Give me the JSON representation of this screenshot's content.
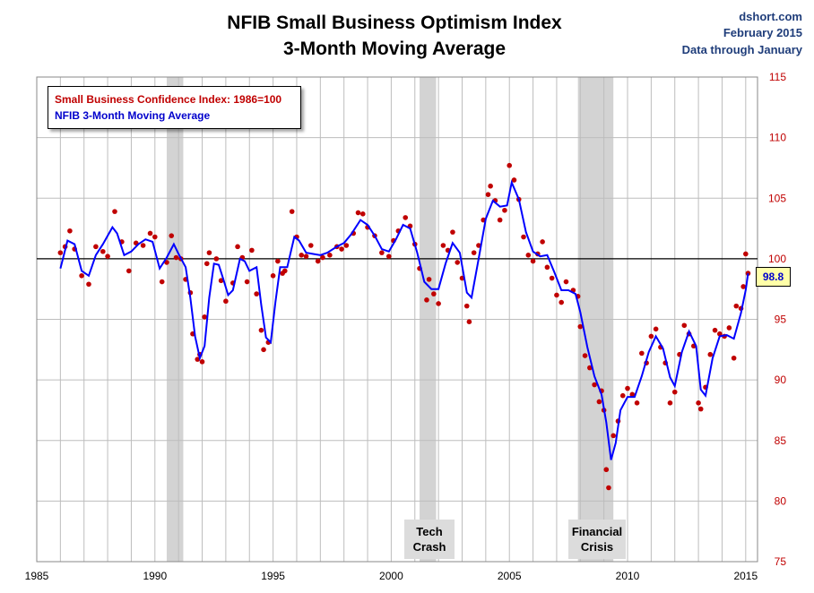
{
  "header": {
    "title_line1": "NFIB Small Business Optimism Index",
    "title_line2": "3-Month Moving Average",
    "credit_site": "dshort.com",
    "credit_date": "February 2015",
    "credit_note": "Data through January"
  },
  "legend": {
    "dots_label": "Small Business Confidence Index: 1986=100",
    "line_label": "NFIB 3-Month Moving Average"
  },
  "callout": {
    "value": "98.8"
  },
  "recession_labels": {
    "tech_line1": "Tech",
    "tech_line2": "Crash",
    "fin_line1": "Financial",
    "fin_line2": "Crisis"
  },
  "colors": {
    "dots": "#c00000",
    "line": "#0000ff",
    "shade": "#d3d3d3",
    "ytick": "#c00000"
  },
  "chart_data": {
    "type": "scatter",
    "title": "NFIB Small Business Optimism Index 3-Month Moving Average",
    "xlim": [
      1985,
      2015.5
    ],
    "ylim": [
      75,
      115
    ],
    "y_axis_side": "right",
    "reference_line": 100,
    "x_ticks": [
      1985,
      1990,
      1995,
      2000,
      2005,
      2010,
      2015
    ],
    "x_tick_labels": [
      "1985",
      "1990",
      "1995",
      "2000",
      "2005",
      "2010",
      "2015"
    ],
    "y_ticks": [
      75,
      80,
      85,
      90,
      95,
      100,
      105,
      110,
      115
    ],
    "y_tick_labels": [
      "75",
      "80",
      "85",
      "90",
      "95",
      "100",
      "105",
      "110",
      "115"
    ],
    "recessions": [
      [
        1990.5,
        1991.2
      ],
      [
        2001.2,
        2001.9
      ],
      [
        2007.9,
        2009.4
      ]
    ],
    "monthly_index_dots": [
      [
        1986.0,
        100.5
      ],
      [
        1986.2,
        101.0
      ],
      [
        1986.4,
        102.3
      ],
      [
        1986.6,
        100.8
      ],
      [
        1986.9,
        98.6
      ],
      [
        1987.2,
        97.9
      ],
      [
        1987.5,
        101.0
      ],
      [
        1987.8,
        100.6
      ],
      [
        1988.0,
        100.2
      ],
      [
        1988.3,
        103.9
      ],
      [
        1988.6,
        101.4
      ],
      [
        1988.9,
        99.0
      ],
      [
        1989.2,
        101.3
      ],
      [
        1989.5,
        101.1
      ],
      [
        1989.8,
        102.1
      ],
      [
        1990.0,
        101.8
      ],
      [
        1990.3,
        98.1
      ],
      [
        1990.5,
        99.7
      ],
      [
        1990.7,
        101.9
      ],
      [
        1990.9,
        100.1
      ],
      [
        1991.1,
        100.0
      ],
      [
        1991.3,
        98.3
      ],
      [
        1991.5,
        97.2
      ],
      [
        1991.6,
        93.8
      ],
      [
        1991.8,
        91.7
      ],
      [
        1991.9,
        92.1
      ],
      [
        1992.0,
        91.5
      ],
      [
        1992.1,
        95.2
      ],
      [
        1992.2,
        99.6
      ],
      [
        1992.3,
        100.5
      ],
      [
        1992.6,
        100.0
      ],
      [
        1992.8,
        98.2
      ],
      [
        1993.0,
        96.5
      ],
      [
        1993.3,
        98.0
      ],
      [
        1993.5,
        101.0
      ],
      [
        1993.7,
        100.1
      ],
      [
        1993.9,
        98.1
      ],
      [
        1994.1,
        100.7
      ],
      [
        1994.3,
        97.1
      ],
      [
        1994.5,
        94.1
      ],
      [
        1994.6,
        92.5
      ],
      [
        1994.8,
        93.1
      ],
      [
        1995.0,
        98.6
      ],
      [
        1995.2,
        99.8
      ],
      [
        1995.4,
        98.8
      ],
      [
        1995.5,
        99.0
      ],
      [
        1995.8,
        103.9
      ],
      [
        1996.0,
        101.8
      ],
      [
        1996.2,
        100.3
      ],
      [
        1996.4,
        100.2
      ],
      [
        1996.6,
        101.1
      ],
      [
        1996.9,
        99.8
      ],
      [
        1997.1,
        100.1
      ],
      [
        1997.4,
        100.3
      ],
      [
        1997.7,
        101.0
      ],
      [
        1997.9,
        100.8
      ],
      [
        1998.1,
        101.1
      ],
      [
        1998.4,
        102.1
      ],
      [
        1998.6,
        103.8
      ],
      [
        1998.8,
        103.7
      ],
      [
        1999.0,
        102.6
      ],
      [
        1999.3,
        101.9
      ],
      [
        1999.6,
        100.5
      ],
      [
        1999.9,
        100.2
      ],
      [
        2000.1,
        101.5
      ],
      [
        2000.3,
        102.3
      ],
      [
        2000.6,
        103.4
      ],
      [
        2000.8,
        102.7
      ],
      [
        2001.0,
        101.2
      ],
      [
        2001.2,
        99.2
      ],
      [
        2001.5,
        96.6
      ],
      [
        2001.6,
        98.3
      ],
      [
        2001.8,
        97.1
      ],
      [
        2002.0,
        96.3
      ],
      [
        2002.2,
        101.1
      ],
      [
        2002.4,
        100.7
      ],
      [
        2002.6,
        102.2
      ],
      [
        2002.8,
        99.7
      ],
      [
        2003.0,
        98.4
      ],
      [
        2003.2,
        96.1
      ],
      [
        2003.3,
        94.8
      ],
      [
        2003.5,
        100.5
      ],
      [
        2003.7,
        101.1
      ],
      [
        2003.9,
        103.2
      ],
      [
        2004.1,
        105.3
      ],
      [
        2004.2,
        106.0
      ],
      [
        2004.4,
        104.8
      ],
      [
        2004.6,
        103.2
      ],
      [
        2004.8,
        104.0
      ],
      [
        2005.0,
        107.7
      ],
      [
        2005.2,
        106.5
      ],
      [
        2005.4,
        104.9
      ],
      [
        2005.6,
        101.8
      ],
      [
        2005.8,
        100.3
      ],
      [
        2006.0,
        99.8
      ],
      [
        2006.2,
        100.4
      ],
      [
        2006.4,
        101.4
      ],
      [
        2006.6,
        99.3
      ],
      [
        2006.8,
        98.4
      ],
      [
        2007.0,
        97.0
      ],
      [
        2007.2,
        96.4
      ],
      [
        2007.4,
        98.1
      ],
      [
        2007.7,
        97.4
      ],
      [
        2007.9,
        96.9
      ],
      [
        2008.0,
        94.4
      ],
      [
        2008.2,
        92.0
      ],
      [
        2008.4,
        91.0
      ],
      [
        2008.6,
        89.6
      ],
      [
        2008.8,
        88.2
      ],
      [
        2008.9,
        89.1
      ],
      [
        2009.0,
        87.5
      ],
      [
        2009.1,
        82.6
      ],
      [
        2009.2,
        81.1
      ],
      [
        2009.4,
        85.4
      ],
      [
        2009.6,
        86.6
      ],
      [
        2009.8,
        88.7
      ],
      [
        2010.0,
        89.3
      ],
      [
        2010.2,
        88.8
      ],
      [
        2010.4,
        88.1
      ],
      [
        2010.6,
        92.2
      ],
      [
        2010.8,
        91.4
      ],
      [
        2011.0,
        93.6
      ],
      [
        2011.2,
        94.2
      ],
      [
        2011.4,
        92.7
      ],
      [
        2011.6,
        91.4
      ],
      [
        2011.8,
        88.1
      ],
      [
        2012.0,
        89.0
      ],
      [
        2012.2,
        92.1
      ],
      [
        2012.4,
        94.5
      ],
      [
        2012.6,
        93.8
      ],
      [
        2012.8,
        92.8
      ],
      [
        2013.0,
        88.1
      ],
      [
        2013.1,
        87.6
      ],
      [
        2013.3,
        89.4
      ],
      [
        2013.5,
        92.1
      ],
      [
        2013.7,
        94.1
      ],
      [
        2013.9,
        93.8
      ],
      [
        2014.1,
        93.6
      ],
      [
        2014.3,
        94.3
      ],
      [
        2014.5,
        91.8
      ],
      [
        2014.6,
        96.1
      ],
      [
        2014.8,
        95.9
      ],
      [
        2014.9,
        97.7
      ],
      [
        2015.0,
        100.4
      ],
      [
        2015.1,
        98.8
      ]
    ],
    "moving_average": [
      [
        1986.0,
        99.2
      ],
      [
        1986.3,
        101.5
      ],
      [
        1986.6,
        101.2
      ],
      [
        1986.9,
        99.0
      ],
      [
        1987.2,
        98.6
      ],
      [
        1987.5,
        100.3
      ],
      [
        1987.8,
        101.2
      ],
      [
        1988.2,
        102.6
      ],
      [
        1988.4,
        102.1
      ],
      [
        1988.7,
        100.3
      ],
      [
        1989.0,
        100.6
      ],
      [
        1989.3,
        101.2
      ],
      [
        1989.6,
        101.6
      ],
      [
        1989.9,
        101.4
      ],
      [
        1990.2,
        99.2
      ],
      [
        1990.5,
        100.1
      ],
      [
        1990.8,
        101.2
      ],
      [
        1991.0,
        100.4
      ],
      [
        1991.3,
        99.3
      ],
      [
        1991.5,
        96.8
      ],
      [
        1991.7,
        93.6
      ],
      [
        1991.9,
        91.8
      ],
      [
        1992.1,
        92.8
      ],
      [
        1992.3,
        96.8
      ],
      [
        1992.5,
        99.6
      ],
      [
        1992.7,
        99.5
      ],
      [
        1992.9,
        98.3
      ],
      [
        1993.1,
        97.0
      ],
      [
        1993.3,
        97.4
      ],
      [
        1993.6,
        100.0
      ],
      [
        1993.8,
        99.8
      ],
      [
        1994.0,
        99.0
      ],
      [
        1994.3,
        99.3
      ],
      [
        1994.5,
        96.2
      ],
      [
        1994.7,
        93.5
      ],
      [
        1994.9,
        93.1
      ],
      [
        1995.1,
        96.4
      ],
      [
        1995.3,
        99.3
      ],
      [
        1995.6,
        99.3
      ],
      [
        1995.9,
        101.8
      ],
      [
        1996.1,
        101.5
      ],
      [
        1996.4,
        100.5
      ],
      [
        1996.7,
        100.4
      ],
      [
        1997.0,
        100.3
      ],
      [
        1997.3,
        100.5
      ],
      [
        1997.7,
        101.0
      ],
      [
        1998.0,
        101.3
      ],
      [
        1998.3,
        102.0
      ],
      [
        1998.7,
        103.2
      ],
      [
        1999.0,
        102.8
      ],
      [
        1999.3,
        101.9
      ],
      [
        1999.6,
        100.8
      ],
      [
        1999.9,
        100.6
      ],
      [
        2000.2,
        101.6
      ],
      [
        2000.5,
        102.8
      ],
      [
        2000.8,
        102.5
      ],
      [
        2001.1,
        100.5
      ],
      [
        2001.4,
        98.1
      ],
      [
        2001.7,
        97.5
      ],
      [
        2002.0,
        97.5
      ],
      [
        2002.3,
        99.6
      ],
      [
        2002.6,
        101.3
      ],
      [
        2002.9,
        100.5
      ],
      [
        2003.2,
        97.2
      ],
      [
        2003.4,
        96.8
      ],
      [
        2003.7,
        100.0
      ],
      [
        2004.0,
        103.3
      ],
      [
        2004.3,
        104.8
      ],
      [
        2004.6,
        104.3
      ],
      [
        2004.9,
        104.4
      ],
      [
        2005.1,
        106.3
      ],
      [
        2005.4,
        104.9
      ],
      [
        2005.7,
        102.2
      ],
      [
        2006.0,
        100.6
      ],
      [
        2006.3,
        100.2
      ],
      [
        2006.6,
        100.3
      ],
      [
        2006.9,
        98.9
      ],
      [
        2007.2,
        97.4
      ],
      [
        2007.5,
        97.4
      ],
      [
        2007.8,
        97.1
      ],
      [
        2008.0,
        95.6
      ],
      [
        2008.3,
        92.7
      ],
      [
        2008.6,
        90.3
      ],
      [
        2008.9,
        88.8
      ],
      [
        2009.1,
        86.5
      ],
      [
        2009.3,
        83.4
      ],
      [
        2009.5,
        84.8
      ],
      [
        2009.7,
        87.5
      ],
      [
        2010.0,
        88.6
      ],
      [
        2010.3,
        88.6
      ],
      [
        2010.6,
        90.3
      ],
      [
        2010.9,
        92.3
      ],
      [
        2011.2,
        93.6
      ],
      [
        2011.5,
        92.6
      ],
      [
        2011.8,
        90.2
      ],
      [
        2012.0,
        89.5
      ],
      [
        2012.3,
        92.3
      ],
      [
        2012.6,
        94.0
      ],
      [
        2012.9,
        92.8
      ],
      [
        2013.1,
        89.2
      ],
      [
        2013.3,
        88.7
      ],
      [
        2013.6,
        91.8
      ],
      [
        2013.9,
        93.6
      ],
      [
        2014.2,
        93.7
      ],
      [
        2014.5,
        93.4
      ],
      [
        2014.8,
        95.5
      ],
      [
        2015.0,
        97.4
      ],
      [
        2015.1,
        98.8
      ]
    ]
  }
}
